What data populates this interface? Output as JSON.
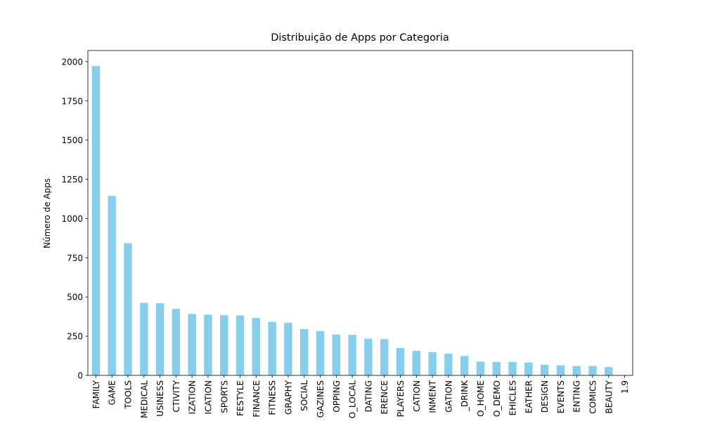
{
  "chart_data": {
    "type": "bar",
    "title": "Distribuição de Apps por Categoria",
    "y_label": "Número de Apps",
    "categories": [
      "FAMILY",
      "GAME",
      "TOOLS",
      "MEDICAL",
      "USINESS",
      "CTIVITY",
      "IZATION",
      "ICATION",
      "SPORTS",
      "FESTYLE",
      "FINANCE",
      "FITNESS",
      "GRAPHY",
      "SOCIAL",
      "GAZINES",
      "OPPING",
      "O_LOCAL",
      "DATING",
      "ERENCE",
      "PLAYERS",
      "CATION",
      "INMENT",
      "GATION",
      "_DRINK",
      "O_HOME",
      "O_DEMO",
      "EHICLES",
      "EATHER",
      "DESIGN",
      "EVENTS",
      "ENTING",
      "COMICS",
      "BEAUTY",
      "1.9"
    ],
    "values": [
      1972,
      1144,
      843,
      463,
      460,
      424,
      392,
      387,
      384,
      382,
      366,
      341,
      335,
      295,
      283,
      260,
      258,
      234,
      231,
      175,
      156,
      149,
      138,
      124,
      88,
      85,
      85,
      82,
      68,
      64,
      60,
      60,
      53,
      1
    ],
    "color": "#87ceeb",
    "ylim": [
      0,
      2071
    ],
    "yticks": [
      0,
      250,
      500,
      750,
      1000,
      1250,
      1500,
      1750,
      2000
    ],
    "grid": false
  }
}
